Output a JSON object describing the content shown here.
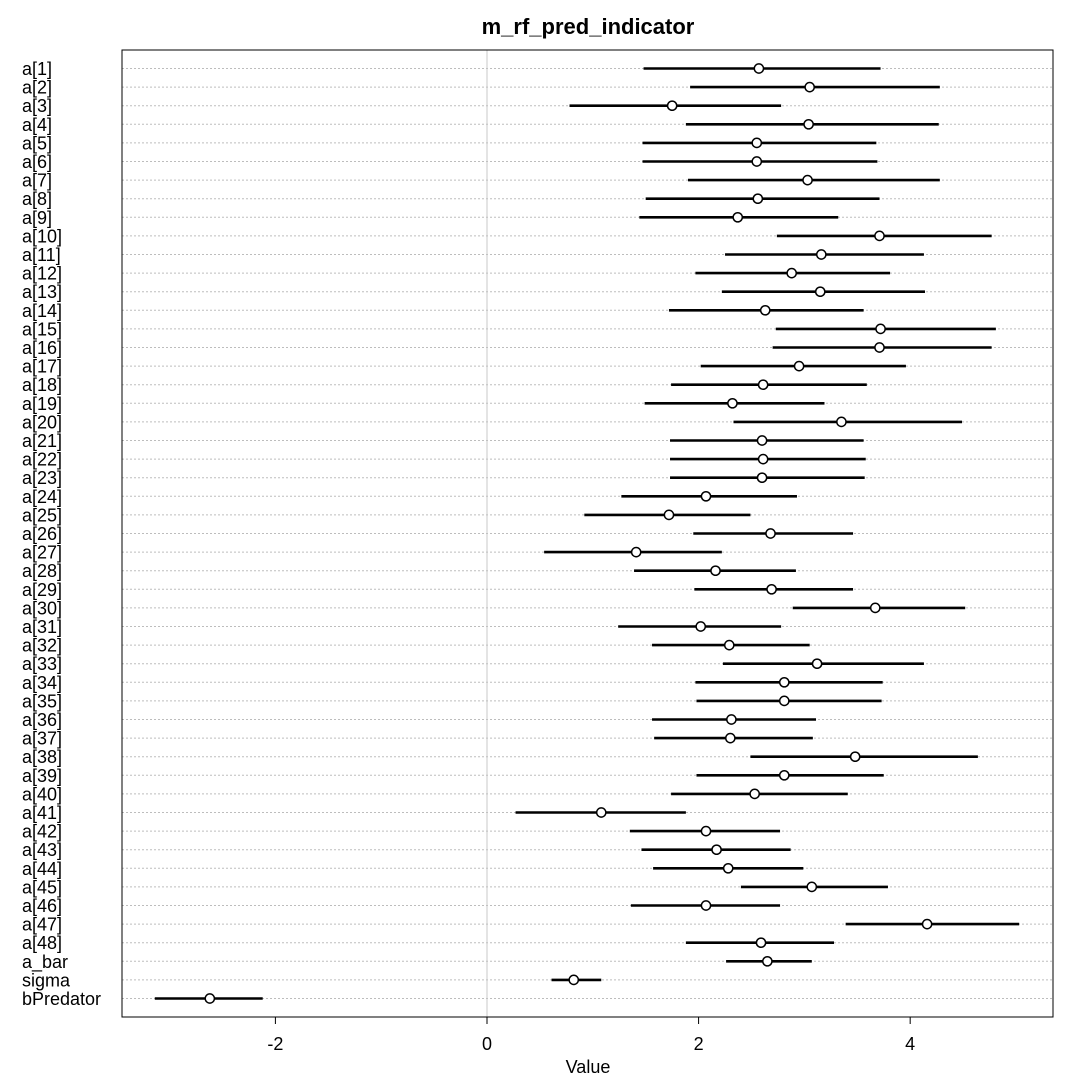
{
  "chart_data": {
    "type": "scatter",
    "title": "m_rf_pred_indicator",
    "xlabel": "Value",
    "ylabel": "",
    "xlim": [
      -3.45,
      5.35
    ],
    "xticks": [
      -2,
      0,
      2,
      4
    ],
    "xtick_labels": [
      "-2",
      "0",
      "2",
      "4"
    ],
    "zero_line": true,
    "grid": "horizontal dotted",
    "params": [
      {
        "label": "a[1]",
        "mean": 2.57,
        "lo": 1.48,
        "hi": 3.72
      },
      {
        "label": "a[2]",
        "mean": 3.05,
        "lo": 1.92,
        "hi": 4.28
      },
      {
        "label": "a[3]",
        "mean": 1.75,
        "lo": 0.78,
        "hi": 2.78
      },
      {
        "label": "a[4]",
        "mean": 3.04,
        "lo": 1.88,
        "hi": 4.27
      },
      {
        "label": "a[5]",
        "mean": 2.55,
        "lo": 1.47,
        "hi": 3.68
      },
      {
        "label": "a[6]",
        "mean": 2.55,
        "lo": 1.47,
        "hi": 3.69
      },
      {
        "label": "a[7]",
        "mean": 3.03,
        "lo": 1.9,
        "hi": 4.28
      },
      {
        "label": "a[8]",
        "mean": 2.56,
        "lo": 1.5,
        "hi": 3.71
      },
      {
        "label": "a[9]",
        "mean": 2.37,
        "lo": 1.44,
        "hi": 3.32
      },
      {
        "label": "a[10]",
        "mean": 3.71,
        "lo": 2.74,
        "hi": 4.77
      },
      {
        "label": "a[11]",
        "mean": 3.16,
        "lo": 2.25,
        "hi": 4.13
      },
      {
        "label": "a[12]",
        "mean": 2.88,
        "lo": 1.97,
        "hi": 3.81
      },
      {
        "label": "a[13]",
        "mean": 3.15,
        "lo": 2.22,
        "hi": 4.14
      },
      {
        "label": "a[14]",
        "mean": 2.63,
        "lo": 1.72,
        "hi": 3.56
      },
      {
        "label": "a[15]",
        "mean": 3.72,
        "lo": 2.73,
        "hi": 4.81
      },
      {
        "label": "a[16]",
        "mean": 3.71,
        "lo": 2.7,
        "hi": 4.77
      },
      {
        "label": "a[17]",
        "mean": 2.95,
        "lo": 2.02,
        "hi": 3.96
      },
      {
        "label": "a[18]",
        "mean": 2.61,
        "lo": 1.74,
        "hi": 3.59
      },
      {
        "label": "a[19]",
        "mean": 2.32,
        "lo": 1.49,
        "hi": 3.19
      },
      {
        "label": "a[20]",
        "mean": 3.35,
        "lo": 2.33,
        "hi": 4.49
      },
      {
        "label": "a[21]",
        "mean": 2.6,
        "lo": 1.73,
        "hi": 3.56
      },
      {
        "label": "a[22]",
        "mean": 2.61,
        "lo": 1.73,
        "hi": 3.58
      },
      {
        "label": "a[23]",
        "mean": 2.6,
        "lo": 1.73,
        "hi": 3.57
      },
      {
        "label": "a[24]",
        "mean": 2.07,
        "lo": 1.27,
        "hi": 2.93
      },
      {
        "label": "a[25]",
        "mean": 1.72,
        "lo": 0.92,
        "hi": 2.49
      },
      {
        "label": "a[26]",
        "mean": 2.68,
        "lo": 1.95,
        "hi": 3.46
      },
      {
        "label": "a[27]",
        "mean": 1.41,
        "lo": 0.54,
        "hi": 2.22
      },
      {
        "label": "a[28]",
        "mean": 2.16,
        "lo": 1.39,
        "hi": 2.92
      },
      {
        "label": "a[29]",
        "mean": 2.69,
        "lo": 1.96,
        "hi": 3.46
      },
      {
        "label": "a[30]",
        "mean": 3.67,
        "lo": 2.89,
        "hi": 4.52
      },
      {
        "label": "a[31]",
        "mean": 2.02,
        "lo": 1.24,
        "hi": 2.78
      },
      {
        "label": "a[32]",
        "mean": 2.29,
        "lo": 1.56,
        "hi": 3.05
      },
      {
        "label": "a[33]",
        "mean": 3.12,
        "lo": 2.23,
        "hi": 4.13
      },
      {
        "label": "a[34]",
        "mean": 2.81,
        "lo": 1.97,
        "hi": 3.74
      },
      {
        "label": "a[35]",
        "mean": 2.81,
        "lo": 1.98,
        "hi": 3.73
      },
      {
        "label": "a[36]",
        "mean": 2.31,
        "lo": 1.56,
        "hi": 3.11
      },
      {
        "label": "a[37]",
        "mean": 2.3,
        "lo": 1.58,
        "hi": 3.08
      },
      {
        "label": "a[38]",
        "mean": 3.48,
        "lo": 2.49,
        "hi": 4.64
      },
      {
        "label": "a[39]",
        "mean": 2.81,
        "lo": 1.98,
        "hi": 3.75
      },
      {
        "label": "a[40]",
        "mean": 2.53,
        "lo": 1.74,
        "hi": 3.41
      },
      {
        "label": "a[41]",
        "mean": 1.08,
        "lo": 0.27,
        "hi": 1.88
      },
      {
        "label": "a[42]",
        "mean": 2.07,
        "lo": 1.35,
        "hi": 2.77
      },
      {
        "label": "a[43]",
        "mean": 2.17,
        "lo": 1.46,
        "hi": 2.87
      },
      {
        "label": "a[44]",
        "mean": 2.28,
        "lo": 1.57,
        "hi": 2.99
      },
      {
        "label": "a[45]",
        "mean": 3.07,
        "lo": 2.4,
        "hi": 3.79
      },
      {
        "label": "a[46]",
        "mean": 2.07,
        "lo": 1.36,
        "hi": 2.77
      },
      {
        "label": "a[47]",
        "mean": 4.16,
        "lo": 3.39,
        "hi": 5.03
      },
      {
        "label": "a[48]",
        "mean": 2.59,
        "lo": 1.88,
        "hi": 3.28
      },
      {
        "label": "a_bar",
        "mean": 2.65,
        "lo": 2.26,
        "hi": 3.07
      },
      {
        "label": "sigma",
        "mean": 0.82,
        "lo": 0.61,
        "hi": 1.08
      },
      {
        "label": "bPredator",
        "mean": -2.62,
        "lo": -3.14,
        "hi": -2.12
      }
    ]
  }
}
